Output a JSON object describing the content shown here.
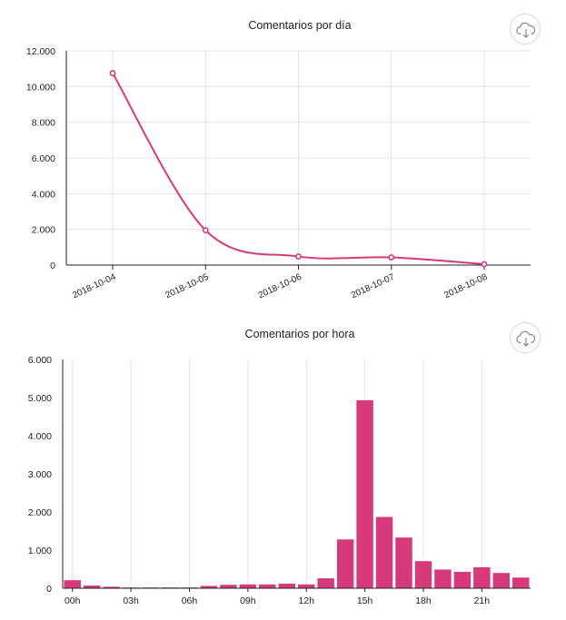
{
  "chart_data": [
    {
      "type": "line",
      "title": "Comentarios por día",
      "xlabel": "",
      "ylabel": "",
      "categories": [
        "2018-10-04",
        "2018-10-05",
        "2018-10-06",
        "2018-10-07",
        "2018-10-08"
      ],
      "values": [
        10750,
        1950,
        480,
        430,
        50
      ],
      "ylim": [
        0,
        12000
      ],
      "yticks": [
        0,
        2000,
        4000,
        6000,
        8000,
        10000,
        12000
      ],
      "ytick_labels": [
        "0",
        "2.000",
        "4.000",
        "6.000",
        "8.000",
        "10.000",
        "12.000"
      ],
      "color": "#d63a7a",
      "grid": true
    },
    {
      "type": "bar",
      "title": "Comentarios por hora",
      "xlabel": "",
      "ylabel": "",
      "categories": [
        "00h",
        "01h",
        "02h",
        "03h",
        "04h",
        "05h",
        "06h",
        "07h",
        "08h",
        "09h",
        "10h",
        "11h",
        "12h",
        "13h",
        "14h",
        "15h",
        "16h",
        "17h",
        "18h",
        "19h",
        "20h",
        "21h",
        "22h",
        "23h"
      ],
      "values": [
        210,
        70,
        40,
        20,
        20,
        20,
        20,
        60,
        90,
        100,
        100,
        120,
        100,
        260,
        1280,
        4930,
        1870,
        1330,
        710,
        490,
        430,
        550,
        400,
        280
      ],
      "xtick_labels": [
        "00h",
        "03h",
        "06h",
        "09h",
        "12h",
        "15h",
        "18h",
        "21h"
      ],
      "ylim": [
        0,
        6000
      ],
      "yticks": [
        0,
        1000,
        2000,
        3000,
        4000,
        5000,
        6000
      ],
      "ytick_labels": [
        "0",
        "1.000",
        "2.000",
        "3.000",
        "4.000",
        "5.000",
        "6.000"
      ],
      "color": "#d63a7a",
      "grid": true
    }
  ],
  "icons": {
    "download": "cloud-download-icon"
  }
}
